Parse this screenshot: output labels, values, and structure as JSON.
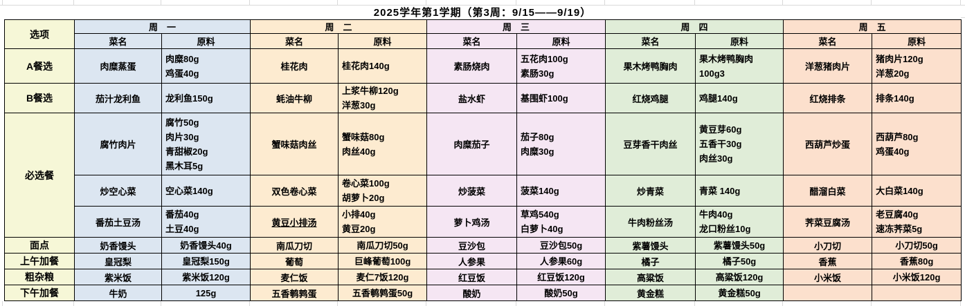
{
  "title": "2025学年第1学期（第3周：9/15——9/19）",
  "corner_label": "选项",
  "subheaders": {
    "dish": "菜名",
    "ingredient": "原料"
  },
  "colors": {
    "label_column": "#f6f7d7",
    "day_header_text": "#595959",
    "border": "#000000"
  },
  "days": [
    {
      "label": "周　一",
      "color": "#dce6f1"
    },
    {
      "label": "周　二",
      "color": "#fdebd0"
    },
    {
      "label": "周　三",
      "color": "#f5e6f3"
    },
    {
      "label": "周　四",
      "color": "#e0edd8"
    },
    {
      "label": "周　五",
      "color": "#fce0cd"
    }
  ],
  "sections": [
    {
      "label": "A餐选",
      "rows": [
        {
          "ing_align": "left",
          "cells": [
            {
              "dish": "肉糜蒸蛋",
              "ing": [
                "肉糜80g",
                "鸡蛋40g"
              ]
            },
            {
              "dish": "桂花肉",
              "ing": [
                "桂花肉140g"
              ]
            },
            {
              "dish": "素肠烧肉",
              "ing": [
                "五花肉100g",
                "素肠30g"
              ]
            },
            {
              "dish": "果木烤鸭胸肉",
              "ing": [
                "果木烤鸭胸肉",
                "100g3"
              ]
            },
            {
              "dish": "洋葱猪肉片",
              "ing": [
                "猪肉片120g",
                "洋葱20g"
              ]
            }
          ]
        }
      ]
    },
    {
      "label": "B餐选",
      "rows": [
        {
          "ing_align": "left",
          "cells": [
            {
              "dish": "茄汁龙利鱼",
              "ing": [
                "龙利鱼150g"
              ]
            },
            {
              "dish": "蚝油牛柳",
              "ing": [
                "上浆牛柳120g",
                "洋葱30g"
              ]
            },
            {
              "dish": "盐水虾",
              "ing": [
                "基围虾100g"
              ]
            },
            {
              "dish": "红烧鸡腿",
              "ing": [
                "鸡腿140g"
              ]
            },
            {
              "dish": "红烧排条",
              "ing": [
                "排条140g"
              ]
            }
          ]
        }
      ]
    },
    {
      "label": "必选餐",
      "rows": [
        {
          "ing_align": "left",
          "cells": [
            {
              "dish": "腐竹肉片",
              "ing": [
                "腐竹50g",
                "肉片30g",
                "青甜椒20g",
                "黑木耳5g"
              ]
            },
            {
              "dish": "蟹味菇肉丝",
              "ing": [
                "蟹味菇80g",
                "肉丝40g"
              ]
            },
            {
              "dish": "肉糜茄子",
              "ing": [
                "茄子80g",
                "肉糜30g"
              ]
            },
            {
              "dish": "豆芽香干肉丝",
              "ing": [
                "黄豆芽60g",
                "五香干30g",
                "肉丝30g"
              ]
            },
            {
              "dish": "西葫芦炒蛋",
              "ing": [
                "西葫芦80g",
                "鸡蛋40g"
              ]
            }
          ]
        },
        {
          "ing_align": "left",
          "cells": [
            {
              "dish": "炒空心菜",
              "ing": [
                "空心菜140g"
              ]
            },
            {
              "dish": "双色卷心菜",
              "ing": [
                "卷心菜100g",
                "胡萝卜20g"
              ]
            },
            {
              "dish": "炒菠菜",
              "ing": [
                "菠菜140g"
              ]
            },
            {
              "dish": "炒青菜",
              "ing": [
                "青菜 140g"
              ]
            },
            {
              "dish": "醋溜白菜",
              "ing": [
                "大白菜140g"
              ]
            }
          ]
        },
        {
          "ing_align": "left",
          "cells": [
            {
              "dish": "番茄土豆汤",
              "ing": [
                "番茄40g",
                "土豆40g"
              ]
            },
            {
              "dish": "黄豆小排汤",
              "underline": true,
              "ing": [
                "小排40g",
                "黄豆20g"
              ]
            },
            {
              "dish": "萝卜鸡汤",
              "ing": [
                "草鸡540g",
                "白萝卜40g"
              ]
            },
            {
              "dish": "牛肉粉丝汤",
              "ing": [
                "牛肉40g",
                "龙口粉丝10g"
              ]
            },
            {
              "dish": "荠菜豆腐汤",
              "ing": [
                "老豆腐40g",
                "速冻荠菜5g"
              ]
            }
          ]
        }
      ]
    },
    {
      "label": "面点",
      "rows": [
        {
          "ing_align": "center",
          "cells": [
            {
              "dish": "奶香馒头",
              "ing": [
                "奶香馒头40g"
              ]
            },
            {
              "dish": "南瓜刀切",
              "ing": [
                "南瓜刀切50g"
              ]
            },
            {
              "dish": "豆沙包",
              "ing": [
                "豆沙包50g"
              ]
            },
            {
              "dish": "紫薯馒头",
              "ing": [
                "紫薯馒头50g"
              ]
            },
            {
              "dish": "小刀切",
              "ing": [
                "小刀切50g"
              ]
            }
          ]
        }
      ]
    },
    {
      "label": "上午加餐",
      "rows": [
        {
          "ing_align": "center",
          "cells": [
            {
              "dish": "皇冠梨",
              "ing": [
                "皇冠梨150g"
              ]
            },
            {
              "dish": "葡萄",
              "ing": [
                "巨峰葡萄100g"
              ]
            },
            {
              "dish": "人参果",
              "ing": [
                "人参果60g"
              ]
            },
            {
              "dish": "橘子",
              "ing": [
                "橘子50g"
              ]
            },
            {
              "dish": "香蕉",
              "ing": [
                "香蕉80g"
              ]
            }
          ]
        }
      ]
    },
    {
      "label": "粗杂粮",
      "rows": [
        {
          "ing_align": "center",
          "cells": [
            {
              "dish": "紫米饭",
              "ing": [
                "紫米饭120g"
              ]
            },
            {
              "dish": "麦仁饭",
              "ing": [
                "麦仁7饭120g"
              ]
            },
            {
              "dish": "红豆饭",
              "ing": [
                "红豆饭120g"
              ]
            },
            {
              "dish": "高粱饭",
              "ing": [
                "高粱饭120g"
              ]
            },
            {
              "dish": "小米饭",
              "ing": [
                "小米饭120g"
              ]
            }
          ]
        }
      ]
    },
    {
      "label": "下午加餐",
      "rows": [
        {
          "ing_align": "center",
          "cells": [
            {
              "dish": "牛奶",
              "ing": [
                "125g"
              ]
            },
            {
              "dish": "五香鹌鹑蛋",
              "ing": [
                "五香鹌鹑蛋50g"
              ]
            },
            {
              "dish": "酸奶",
              "ing": [
                "酸奶50g"
              ]
            },
            {
              "dish": "黄金糕",
              "ing": [
                "黄金糕50g"
              ]
            },
            {
              "dish": "",
              "ing": [
                ""
              ]
            }
          ]
        }
      ]
    }
  ]
}
